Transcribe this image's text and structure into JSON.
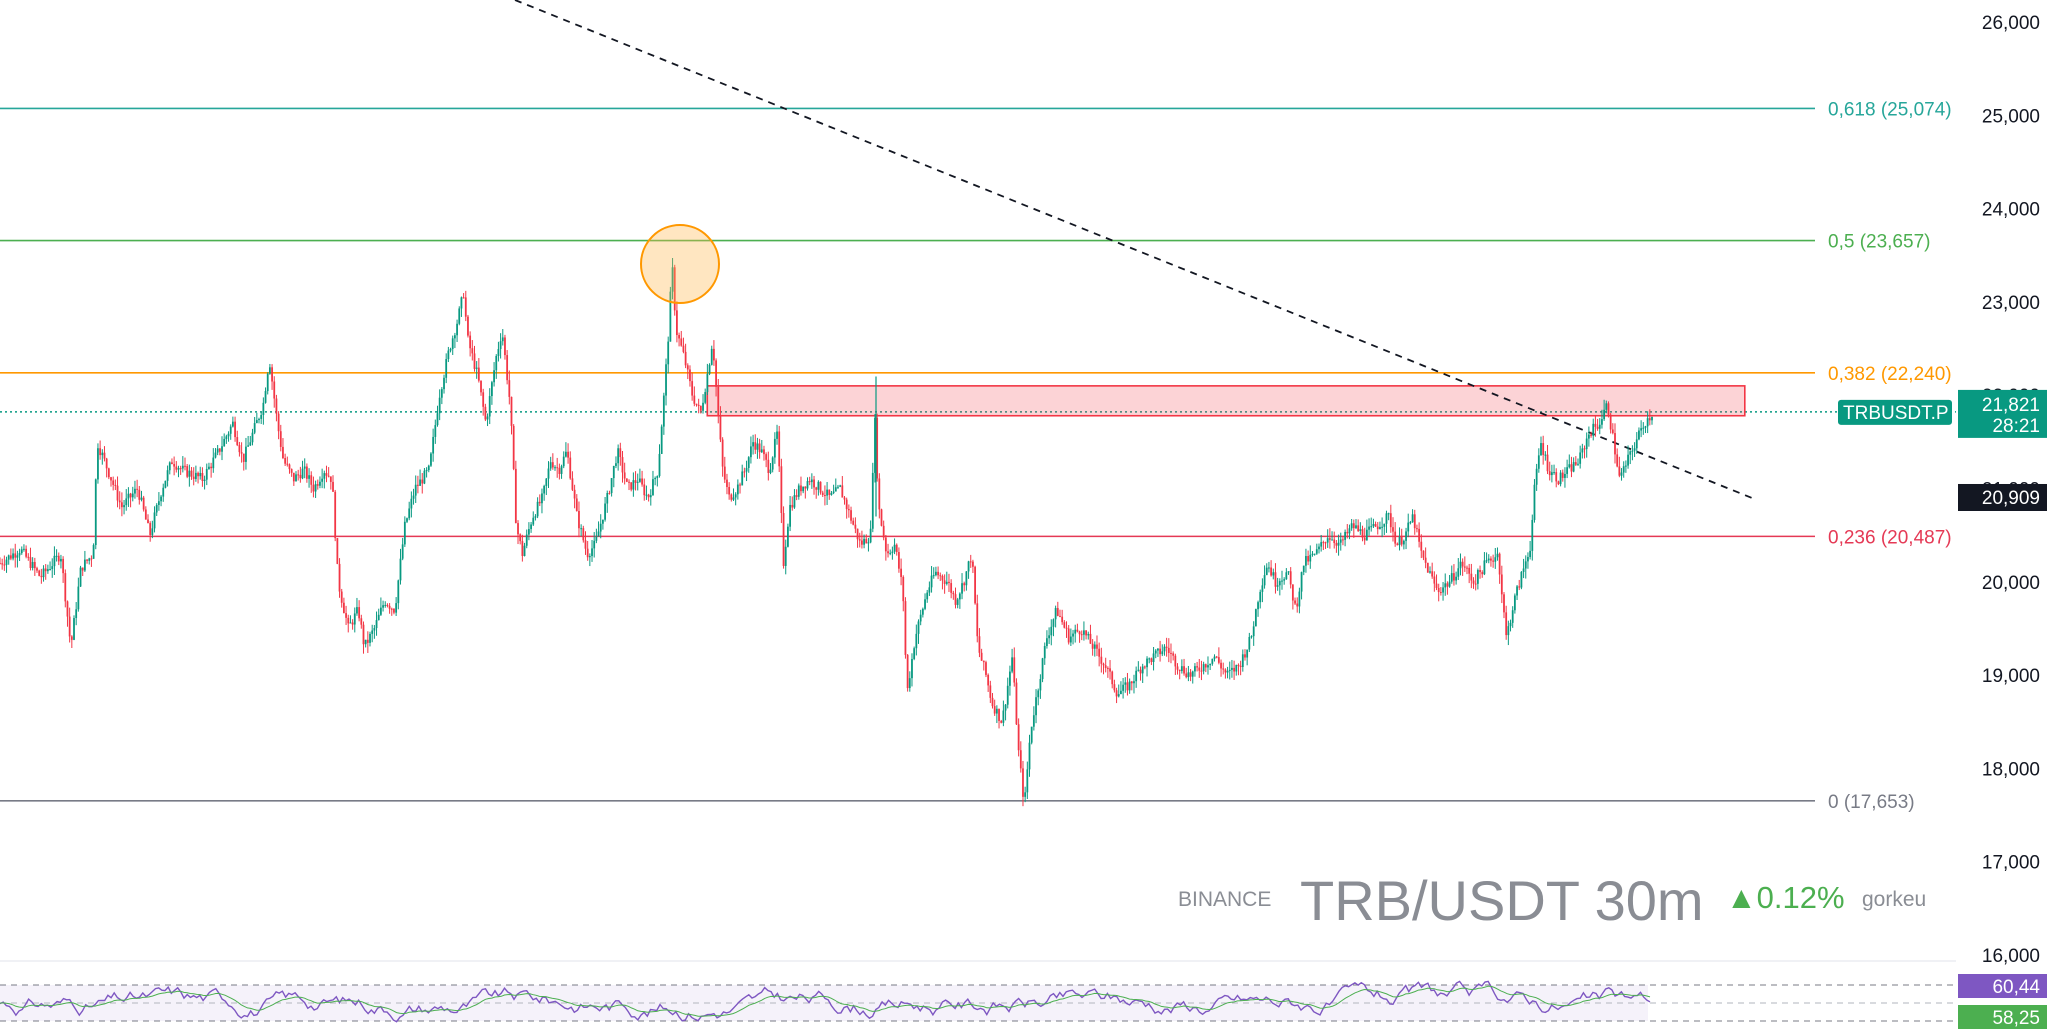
{
  "chart_data": {
    "type": "candlestick",
    "exchange": "BINANCE",
    "symbol": "TRB/USDT",
    "interval": "30m",
    "change": "▲0.12%",
    "author": "gorkeu",
    "y_axis": {
      "ylim": [
        16000,
        26200
      ],
      "ticks": [
        "26,000",
        "25,000",
        "24,000",
        "23,000",
        "22,000",
        "21,000",
        "20,000",
        "19,000",
        "18,000",
        "17,000",
        "16,000"
      ],
      "tick_values": [
        26000,
        25000,
        24000,
        23000,
        22000,
        21000,
        20000,
        19000,
        18000,
        17000,
        16000
      ]
    },
    "fib_levels": [
      {
        "label": "0,618 (25,074)",
        "value": 25074,
        "color": "#26a69a"
      },
      {
        "label": "0,5 (23,657)",
        "value": 23657,
        "color": "#4caf50"
      },
      {
        "label": "0,382 (22,240)",
        "value": 22240,
        "color": "#ff9800"
      },
      {
        "label": "0,236 (20,487)",
        "value": 20487,
        "color": "#e53955"
      },
      {
        "label": "0 (17,653)",
        "value": 17653,
        "color": "#787b86"
      }
    ],
    "resistance_zone": {
      "x_range": [
        0.353,
        0.855
      ],
      "y_range": [
        21780,
        22100
      ],
      "color": "#f23645"
    },
    "trendline": {
      "from": {
        "x": 0.25,
        "y": 26250
      },
      "to": {
        "x": 0.855,
        "y": 20900
      }
    },
    "marked_high": {
      "x": 0.332,
      "y": 23500
    },
    "price_path": [
      [
        0.0,
        20200
      ],
      [
        0.01,
        20350
      ],
      [
        0.02,
        20050
      ],
      [
        0.03,
        20300
      ],
      [
        0.035,
        19300
      ],
      [
        0.04,
        20150
      ],
      [
        0.046,
        20300
      ],
      [
        0.048,
        21500
      ],
      [
        0.055,
        21100
      ],
      [
        0.06,
        20800
      ],
      [
        0.068,
        21000
      ],
      [
        0.074,
        20500
      ],
      [
        0.08,
        21000
      ],
      [
        0.085,
        21300
      ],
      [
        0.09,
        21200
      ],
      [
        0.1,
        21100
      ],
      [
        0.108,
        21400
      ],
      [
        0.115,
        21700
      ],
      [
        0.12,
        21300
      ],
      [
        0.125,
        21600
      ],
      [
        0.13,
        21900
      ],
      [
        0.133,
        22400
      ],
      [
        0.137,
        21700
      ],
      [
        0.14,
        21300
      ],
      [
        0.145,
        21100
      ],
      [
        0.15,
        21200
      ],
      [
        0.155,
        21000
      ],
      [
        0.16,
        21200
      ],
      [
        0.164,
        21100
      ],
      [
        0.167,
        20000
      ],
      [
        0.172,
        19500
      ],
      [
        0.177,
        19700
      ],
      [
        0.18,
        19300
      ],
      [
        0.185,
        19500
      ],
      [
        0.19,
        19800
      ],
      [
        0.195,
        19700
      ],
      [
        0.2,
        20600
      ],
      [
        0.205,
        21000
      ],
      [
        0.212,
        21200
      ],
      [
        0.217,
        22000
      ],
      [
        0.222,
        22500
      ],
      [
        0.226,
        22800
      ],
      [
        0.229,
        23100
      ],
      [
        0.231,
        22600
      ],
      [
        0.236,
        22200
      ],
      [
        0.24,
        21700
      ],
      [
        0.245,
        22400
      ],
      [
        0.248,
        22700
      ],
      [
        0.252,
        21900
      ],
      [
        0.255,
        20600
      ],
      [
        0.258,
        20300
      ],
      [
        0.263,
        20700
      ],
      [
        0.268,
        20900
      ],
      [
        0.272,
        21300
      ],
      [
        0.276,
        21200
      ],
      [
        0.28,
        21400
      ],
      [
        0.285,
        20700
      ],
      [
        0.29,
        20300
      ],
      [
        0.294,
        20400
      ],
      [
        0.3,
        20900
      ],
      [
        0.305,
        21400
      ],
      [
        0.31,
        21000
      ],
      [
        0.315,
        21100
      ],
      [
        0.32,
        20900
      ],
      [
        0.325,
        21200
      ],
      [
        0.328,
        22000
      ],
      [
        0.33,
        22600
      ],
      [
        0.332,
        23400
      ],
      [
        0.334,
        22700
      ],
      [
        0.338,
        22400
      ],
      [
        0.342,
        22000
      ],
      [
        0.346,
        21800
      ],
      [
        0.35,
        22300
      ],
      [
        0.352,
        22600
      ],
      [
        0.355,
        21700
      ],
      [
        0.357,
        21200
      ],
      [
        0.36,
        20900
      ],
      [
        0.364,
        21000
      ],
      [
        0.368,
        21200
      ],
      [
        0.372,
        21500
      ],
      [
        0.376,
        21400
      ],
      [
        0.38,
        21200
      ],
      [
        0.384,
        21600
      ],
      [
        0.387,
        20200
      ],
      [
        0.39,
        20800
      ],
      [
        0.395,
        21000
      ],
      [
        0.4,
        21100
      ],
      [
        0.405,
        21000
      ],
      [
        0.41,
        20900
      ],
      [
        0.415,
        21000
      ],
      [
        0.42,
        20700
      ],
      [
        0.425,
        20400
      ],
      [
        0.43,
        20500
      ],
      [
        0.432,
        21800
      ],
      [
        0.434,
        20800
      ],
      [
        0.438,
        20300
      ],
      [
        0.442,
        20400
      ],
      [
        0.446,
        19900
      ],
      [
        0.448,
        18800
      ],
      [
        0.452,
        19400
      ],
      [
        0.458,
        19900
      ],
      [
        0.462,
        20100
      ],
      [
        0.468,
        20000
      ],
      [
        0.472,
        19800
      ],
      [
        0.476,
        20000
      ],
      [
        0.48,
        20300
      ],
      [
        0.483,
        19300
      ],
      [
        0.487,
        19000
      ],
      [
        0.49,
        18700
      ],
      [
        0.495,
        18500
      ],
      [
        0.5,
        19200
      ],
      [
        0.503,
        18200
      ],
      [
        0.506,
        17600
      ],
      [
        0.509,
        18400
      ],
      [
        0.513,
        18900
      ],
      [
        0.517,
        19400
      ],
      [
        0.522,
        19700
      ],
      [
        0.528,
        19400
      ],
      [
        0.534,
        19500
      ],
      [
        0.54,
        19300
      ],
      [
        0.546,
        19100
      ],
      [
        0.552,
        18800
      ],
      [
        0.558,
        18900
      ],
      [
        0.564,
        19100
      ],
      [
        0.57,
        19200
      ],
      [
        0.576,
        19300
      ],
      [
        0.582,
        19100
      ],
      [
        0.588,
        19000
      ],
      [
        0.594,
        19100
      ],
      [
        0.6,
        19200
      ],
      [
        0.606,
        19000
      ],
      [
        0.612,
        19100
      ],
      [
        0.618,
        19400
      ],
      [
        0.622,
        19900
      ],
      [
        0.626,
        20200
      ],
      [
        0.63,
        20000
      ],
      [
        0.636,
        20100
      ],
      [
        0.64,
        19700
      ],
      [
        0.644,
        20200
      ],
      [
        0.65,
        20300
      ],
      [
        0.656,
        20500
      ],
      [
        0.662,
        20400
      ],
      [
        0.668,
        20600
      ],
      [
        0.674,
        20500
      ],
      [
        0.68,
        20600
      ],
      [
        0.686,
        20700
      ],
      [
        0.69,
        20400
      ],
      [
        0.694,
        20500
      ],
      [
        0.698,
        20700
      ],
      [
        0.702,
        20300
      ],
      [
        0.706,
        20100
      ],
      [
        0.71,
        19900
      ],
      [
        0.716,
        20000
      ],
      [
        0.722,
        20200
      ],
      [
        0.728,
        20000
      ],
      [
        0.734,
        20200
      ],
      [
        0.74,
        20300
      ],
      [
        0.744,
        19400
      ],
      [
        0.748,
        19800
      ],
      [
        0.752,
        20100
      ],
      [
        0.756,
        20400
      ],
      [
        0.758,
        21000
      ],
      [
        0.761,
        21500
      ],
      [
        0.765,
        21200
      ],
      [
        0.77,
        21100
      ],
      [
        0.775,
        21200
      ],
      [
        0.78,
        21300
      ],
      [
        0.785,
        21600
      ],
      [
        0.79,
        21700
      ],
      [
        0.794,
        21900
      ],
      [
        0.797,
        21500
      ],
      [
        0.8,
        21100
      ],
      [
        0.804,
        21300
      ],
      [
        0.808,
        21500
      ],
      [
        0.812,
        21700
      ],
      [
        0.816,
        21800
      ]
    ],
    "last_price": {
      "symbol": "TRBUSDT.P",
      "value": "21,821",
      "countdown": "28:21",
      "y": 21821,
      "color": "#089981"
    },
    "crosshair_price": {
      "value": "20,909",
      "y": 20909
    },
    "rsi": {
      "values": [
        "60,44",
        "58,25"
      ],
      "upper_band": 70,
      "lower_band": 30,
      "mid": 50,
      "color": "#7e57c2"
    }
  }
}
